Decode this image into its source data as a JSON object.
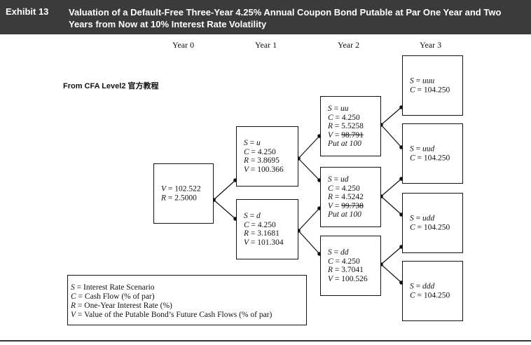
{
  "header": {
    "exhibit_label": "Exhibit 13",
    "title": "Valuation of a Default-Free Three-Year 4.25% Annual Coupon Bond Putable at Par One Year and Two Years from Now at 10% Interest Rate Volatility"
  },
  "years": [
    "Year 0",
    "Year 1",
    "Year 2",
    "Year 3"
  ],
  "source_note": "From CFA Level2 官方教程",
  "nodes": {
    "root": {
      "V": "102.522",
      "R": "2.5000"
    },
    "u": {
      "S": "u",
      "C": "4.250",
      "R": "3.8695",
      "V": "100.366"
    },
    "d": {
      "S": "d",
      "C": "4.250",
      "R": "3.1681",
      "V": "101.304"
    },
    "uu": {
      "S": "uu",
      "C": "4.250",
      "R": "5.5258",
      "V": "98.791",
      "put": "Put at 100"
    },
    "ud": {
      "S": "ud",
      "C": "4.250",
      "R": "4.5242",
      "V": "99.738",
      "put": "Put at 100"
    },
    "dd": {
      "S": "dd",
      "C": "4.250",
      "R": "3.7041",
      "V": "100.526"
    },
    "uuu": {
      "S": "uuu",
      "C": "104.250"
    },
    "uud": {
      "S": "uud",
      "C": "104.250"
    },
    "udd": {
      "S": "udd",
      "C": "104.250"
    },
    "ddd": {
      "S": "ddd",
      "C": "104.250"
    }
  },
  "labels": {
    "S": "S",
    "C": "C",
    "R": "R",
    "V": "V",
    "eq": " = "
  },
  "legend": {
    "line1": "Interest Rate Scenario",
    "line2": "Cash Flow (% of par)",
    "line3": "One-Year Interest Rate (%)",
    "line4": "Value of the Putable Bond’s Future Cash Flows (% of par)"
  }
}
